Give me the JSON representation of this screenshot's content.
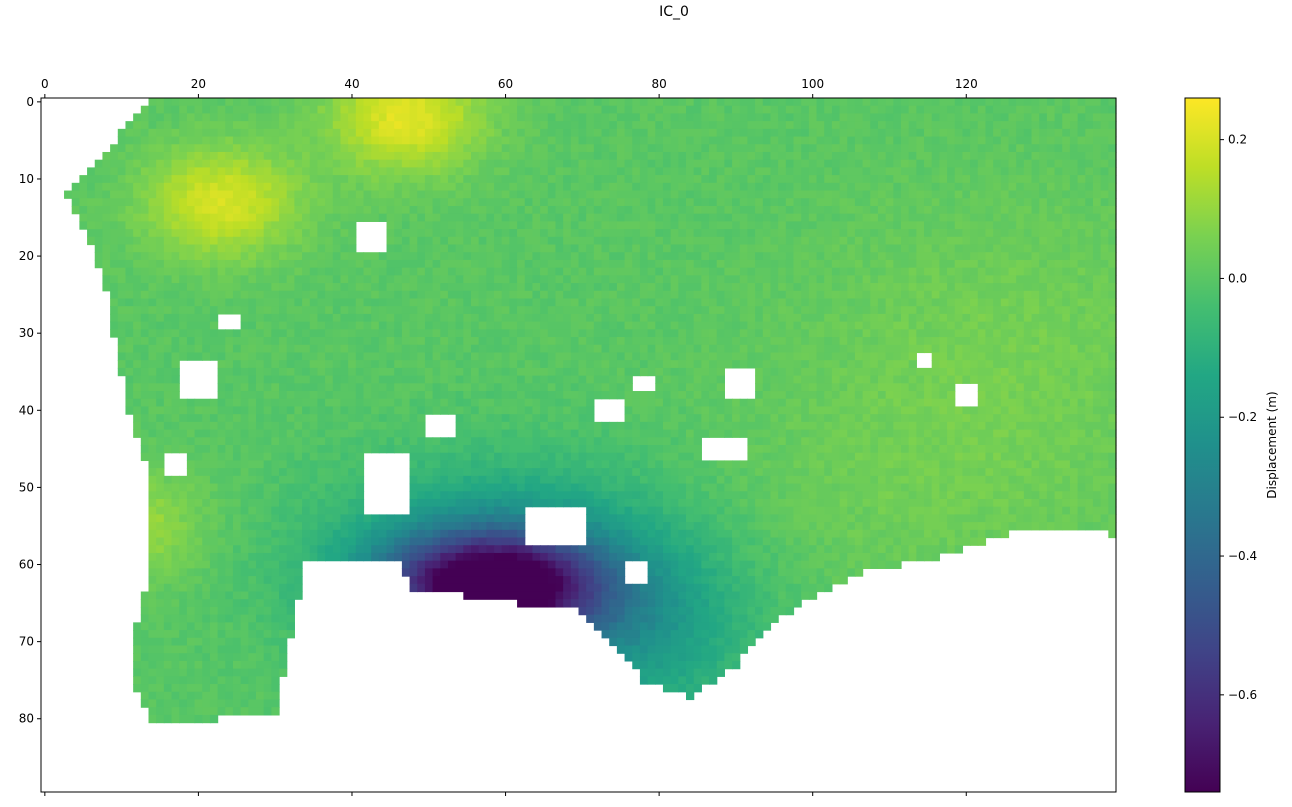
{
  "chart_data": {
    "type": "heatmap",
    "title": "IC_0",
    "xlabel": "",
    "ylabel": "",
    "x_ticks": [
      0,
      20,
      40,
      60,
      80,
      100,
      120
    ],
    "y_ticks": [
      0,
      10,
      20,
      30,
      40,
      50,
      60,
      70,
      80
    ],
    "xlim": [
      -0.5,
      139.5
    ],
    "ylim": [
      89.5,
      -0.5
    ],
    "x_axis_position": "top",
    "grid": false,
    "colormap": "viridis",
    "colorbar": {
      "label": "Displacement (m)",
      "range": [
        -0.74,
        0.26
      ],
      "ticks": [
        0.2,
        0.0,
        -0.2,
        -0.4,
        -0.6
      ],
      "tick_labels": [
        "0.2",
        "0.0",
        "−0.2",
        "−0.4",
        "−0.6"
      ]
    },
    "grid_shape": {
      "rows": 90,
      "cols": 140
    },
    "field_features": [
      {
        "kind": "uplift-high",
        "x": 47,
        "y": 2,
        "value": 0.22
      },
      {
        "kind": "uplift-high",
        "x": 23,
        "y": 13,
        "value": 0.2
      },
      {
        "kind": "uplift-high",
        "x": 10,
        "y": 55,
        "value": 0.13
      },
      {
        "kind": "subsidence-low",
        "x": 58,
        "y": 63,
        "value": -0.72
      },
      {
        "kind": "subsidence-zone",
        "x": 78,
        "y": 70,
        "value": -0.15
      }
    ],
    "mask_holes": [
      {
        "x": 42,
        "y": 46,
        "w": 6,
        "h": 8
      },
      {
        "x": 63,
        "y": 53,
        "w": 8,
        "h": 5
      },
      {
        "x": 18,
        "y": 34,
        "w": 5,
        "h": 5
      },
      {
        "x": 89,
        "y": 35,
        "w": 4,
        "h": 4
      },
      {
        "x": 86,
        "y": 44,
        "w": 6,
        "h": 3
      },
      {
        "x": 119,
        "y": 37,
        "w": 3,
        "h": 3
      },
      {
        "x": 41,
        "y": 16,
        "w": 4,
        "h": 4
      },
      {
        "x": 76,
        "y": 60,
        "w": 3,
        "h": 3
      },
      {
        "x": 50,
        "y": 41,
        "w": 4,
        "h": 3
      },
      {
        "x": 72,
        "y": 39,
        "w": 4,
        "h": 3
      },
      {
        "x": 16,
        "y": 46,
        "w": 3,
        "h": 3
      },
      {
        "x": 114,
        "y": 33,
        "w": 2,
        "h": 2
      },
      {
        "x": 77,
        "y": 36,
        "w": 3,
        "h": 2
      },
      {
        "x": 23,
        "y": 28,
        "w": 3,
        "h": 2
      }
    ],
    "coverage_boundary": {
      "top_row_start": [
        {
          "x": 0,
          "y": 2
        },
        {
          "x": 10,
          "y": 2
        },
        {
          "x": 14,
          "y": 0
        },
        {
          "x": 139,
          "y": 0
        }
      ],
      "left_col_start": [
        {
          "y": 0,
          "x": 14
        },
        {
          "y": 4,
          "x": 10
        },
        {
          "y": 8,
          "x": 7
        },
        {
          "y": 12,
          "x": 3
        },
        {
          "y": 18,
          "x": 6
        },
        {
          "y": 24,
          "x": 8
        },
        {
          "y": 30,
          "x": 9
        },
        {
          "y": 40,
          "x": 11
        },
        {
          "y": 50,
          "x": 14
        },
        {
          "y": 60,
          "x": 14
        },
        {
          "y": 68,
          "x": 12
        },
        {
          "y": 75,
          "x": 11
        },
        {
          "y": 82,
          "x": 12
        }
      ],
      "bottom_row_end": [
        {
          "x": 10,
          "y": 72
        },
        {
          "x": 14,
          "y": 80
        },
        {
          "x": 22,
          "y": 80
        },
        {
          "x": 30,
          "y": 79
        },
        {
          "x": 34,
          "y": 59
        },
        {
          "x": 46,
          "y": 59
        },
        {
          "x": 48,
          "y": 63
        },
        {
          "x": 55,
          "y": 64
        },
        {
          "x": 62,
          "y": 65
        },
        {
          "x": 70,
          "y": 66
        },
        {
          "x": 76,
          "y": 72
        },
        {
          "x": 78,
          "y": 75
        },
        {
          "x": 84,
          "y": 77
        },
        {
          "x": 90,
          "y": 73
        },
        {
          "x": 94,
          "y": 68
        },
        {
          "x": 100,
          "y": 64
        },
        {
          "x": 106,
          "y": 61
        },
        {
          "x": 116,
          "y": 59
        },
        {
          "x": 122,
          "y": 57
        },
        {
          "x": 128,
          "y": 55
        },
        {
          "x": 136,
          "y": 55
        },
        {
          "x": 139,
          "y": 56
        }
      ],
      "right_col_end": 139
    }
  }
}
